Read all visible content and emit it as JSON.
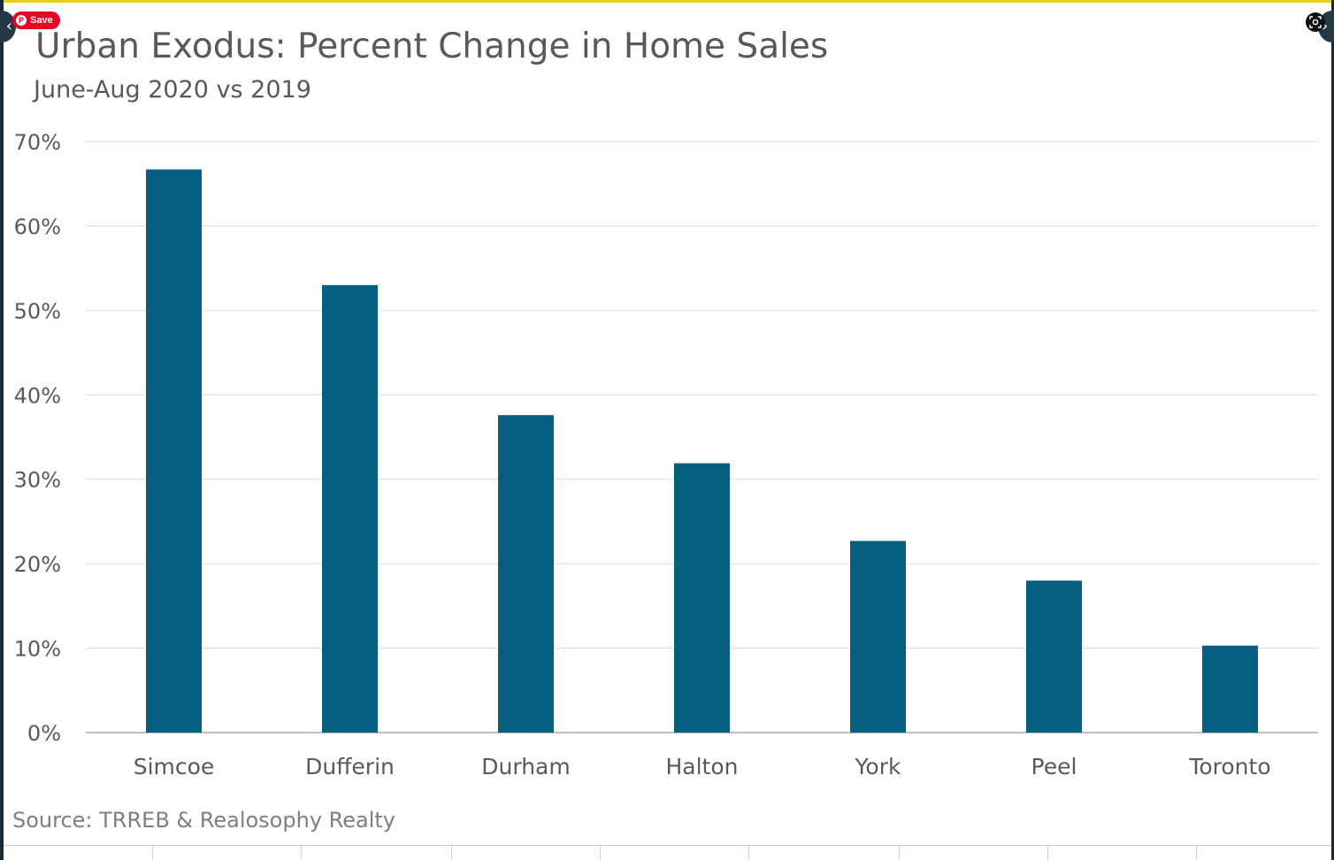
{
  "chart_data": {
    "type": "bar",
    "title": "Urban Exodus: Percent Change in Home Sales",
    "subtitle": "June-Aug 2020 vs 2019",
    "categories": [
      "Simcoe",
      "Dufferin",
      "Durham",
      "Halton",
      "York",
      "Peel",
      "Toronto"
    ],
    "values": [
      66.7,
      53.0,
      37.6,
      31.9,
      22.7,
      18.0,
      10.3
    ],
    "y_ticks": [
      "0%",
      "10%",
      "20%",
      "30%",
      "40%",
      "50%",
      "60%",
      "70%"
    ],
    "ylim": [
      0,
      70
    ],
    "ytick_step": 10,
    "xlabel": "",
    "ylabel": "",
    "grid": true,
    "legend": "none",
    "source": "Source: TRREB & Realosophy Realty",
    "bar_color": "#075f80"
  },
  "overlay": {
    "save_label": "Save",
    "pinterest_icon": "pinterest-icon",
    "prev_icon": "chevron-left-icon",
    "next_icon": "chevron-right-icon",
    "lens_icon": "visual-search-icon"
  },
  "colors": {
    "gridline": "#d9d9d9",
    "axis": "#bfbfbf",
    "text": "#595959",
    "source_text": "#7f7f7f",
    "pinterest_red": "#e60023",
    "frame_dark": "#1b2a35",
    "top_border": "#e8d21a"
  }
}
